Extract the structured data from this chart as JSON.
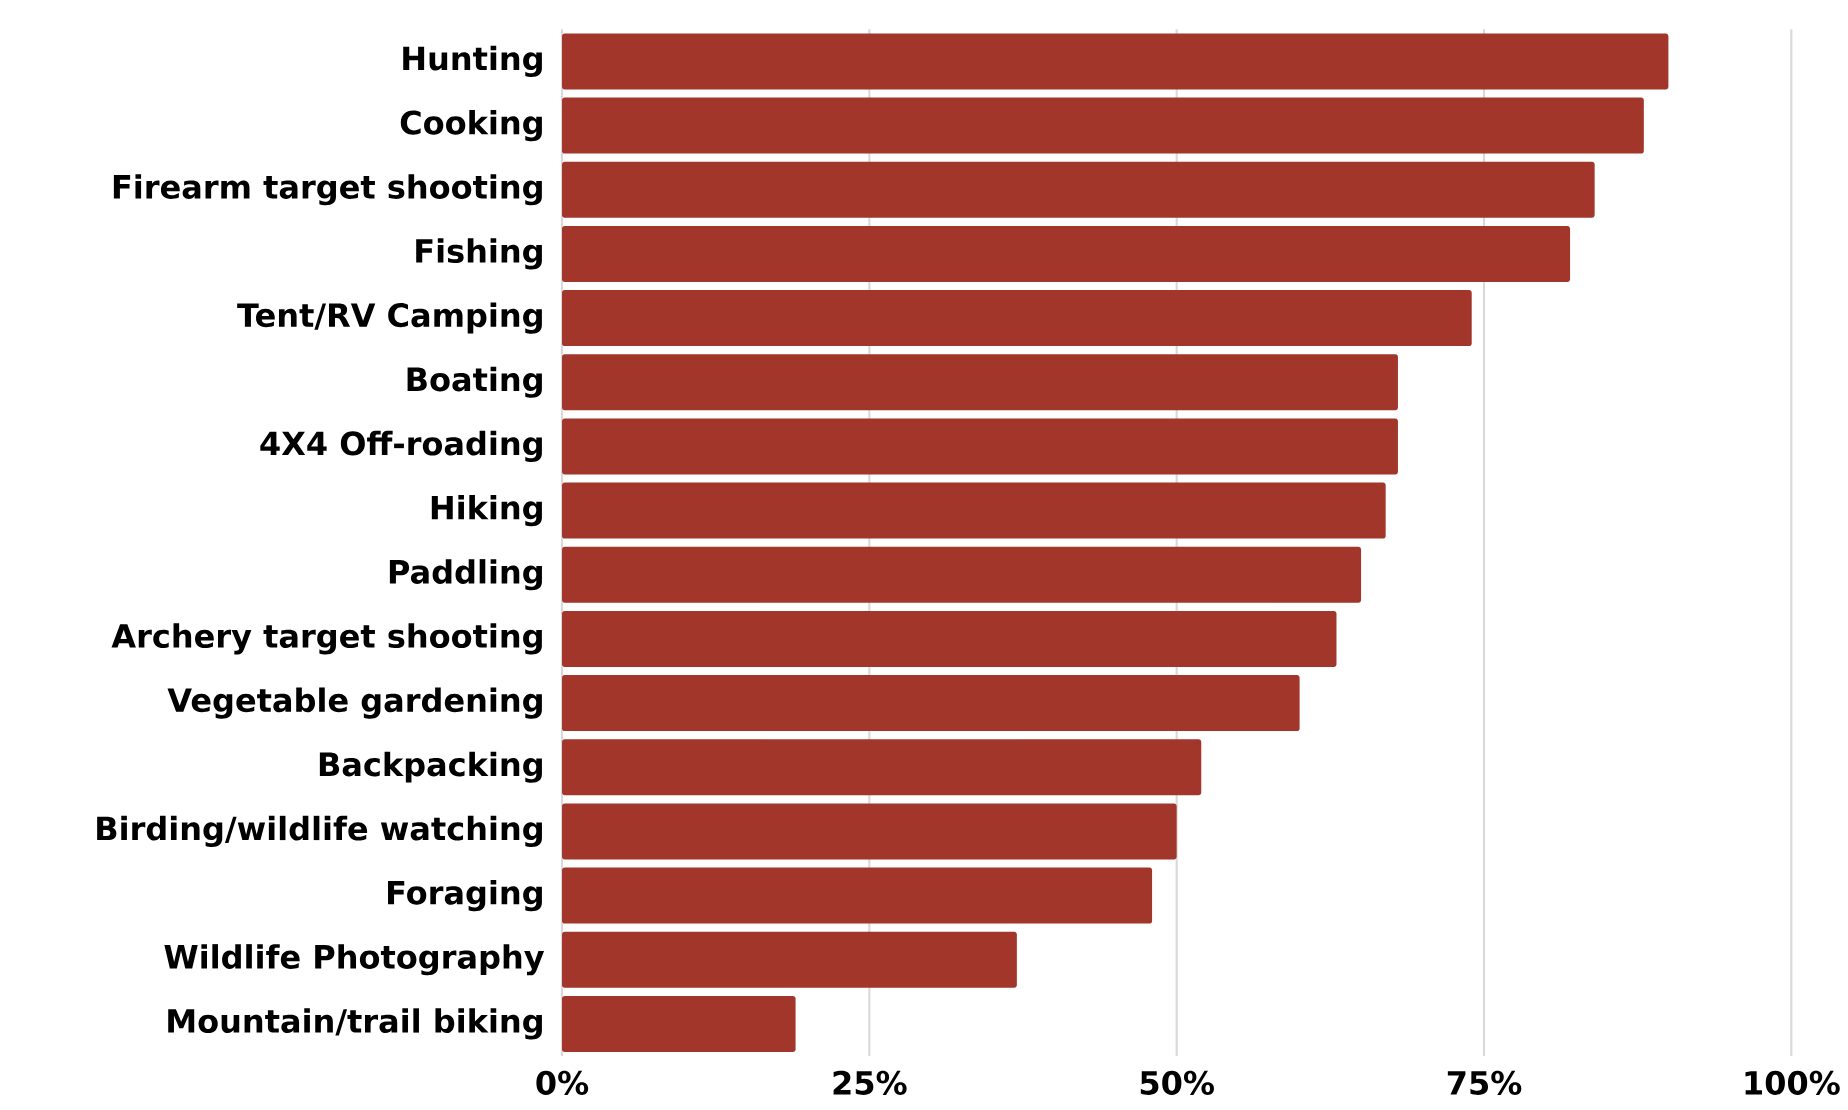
{
  "chart_data": {
    "type": "bar",
    "orientation": "horizontal",
    "categories": [
      "Hunting",
      "Cooking",
      "Firearm target shooting",
      "Fishing",
      "Tent/RV Camping",
      "Boating",
      "4X4 Off-roading",
      "Hiking",
      "Paddling",
      "Archery target shooting",
      "Vegetable gardening",
      "Backpacking",
      "Birding/wildlife watching",
      "Foraging",
      "Wildlife Photography",
      "Mountain/trail biking"
    ],
    "values": [
      90,
      88,
      84,
      82,
      74,
      68,
      68,
      67,
      65,
      63,
      60,
      52,
      50,
      48,
      37,
      19
    ],
    "color": "#a2362a",
    "xlim": [
      0,
      100
    ],
    "xticks": [
      {
        "value": 0,
        "label": "0%"
      },
      {
        "value": 25,
        "label": "25%"
      },
      {
        "value": 50,
        "label": "50%"
      },
      {
        "value": 75,
        "label": "75%"
      },
      {
        "value": 100,
        "label": "100%"
      }
    ],
    "grid": "x"
  }
}
